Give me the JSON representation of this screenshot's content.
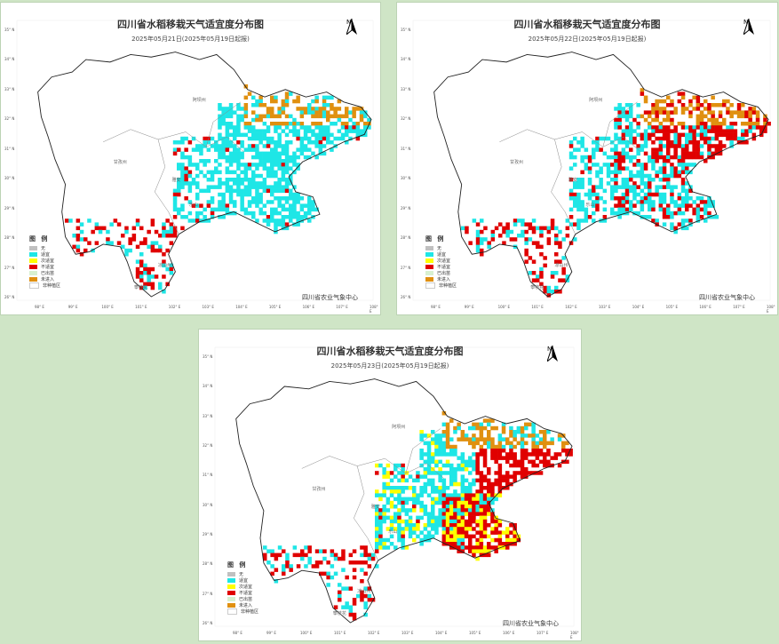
{
  "maps": [
    {
      "title": "四川省水稻移栽天气适宜度分布图",
      "subtitle": "2025年05月21日(2025年05月19日起报)",
      "scenario": "early"
    },
    {
      "title": "四川省水稻移栽天气适宜度分布图",
      "subtitle": "2025年05月22日(2025年05月19日起报)",
      "scenario": "mid"
    },
    {
      "title": "四川省水稻移栽天气适宜度分布图",
      "subtitle": "2025年05月23日(2025年05月19日起报)",
      "scenario": "late"
    }
  ],
  "north_label": "N",
  "legend": {
    "title": "图 例",
    "items": [
      {
        "label": "无",
        "color": "#c0c0c0"
      },
      {
        "label": "适宜",
        "color": "#1ee6e6"
      },
      {
        "label": "次适宜",
        "color": "#ffff00"
      },
      {
        "label": "不适宜",
        "color": "#e00000"
      },
      {
        "label": "已出苗",
        "color": "#d8f0d0"
      },
      {
        "label": "未进入",
        "color": "#e09010"
      },
      {
        "label": "非种植区",
        "color": "#ffffff"
      }
    ]
  },
  "credit": "四川省农业气象中心",
  "regions": {
    "aba": "阿坝州",
    "ganzi": "甘孜州",
    "yaan": "雅安",
    "leshan": "乐山",
    "liangshan": "凉山州",
    "panzhihua": "攀枝花"
  },
  "lat_labels": [
    "35° N",
    "34° N",
    "33° N",
    "32° N",
    "31° N",
    "30° N",
    "29° N",
    "28° N",
    "27° N",
    "26° N"
  ],
  "lon_labels": [
    "98° E",
    "99° E",
    "100° E",
    "101° E",
    "102° E",
    "103° E",
    "104° E",
    "105° E",
    "106° E",
    "107° E",
    "108° E"
  ]
}
